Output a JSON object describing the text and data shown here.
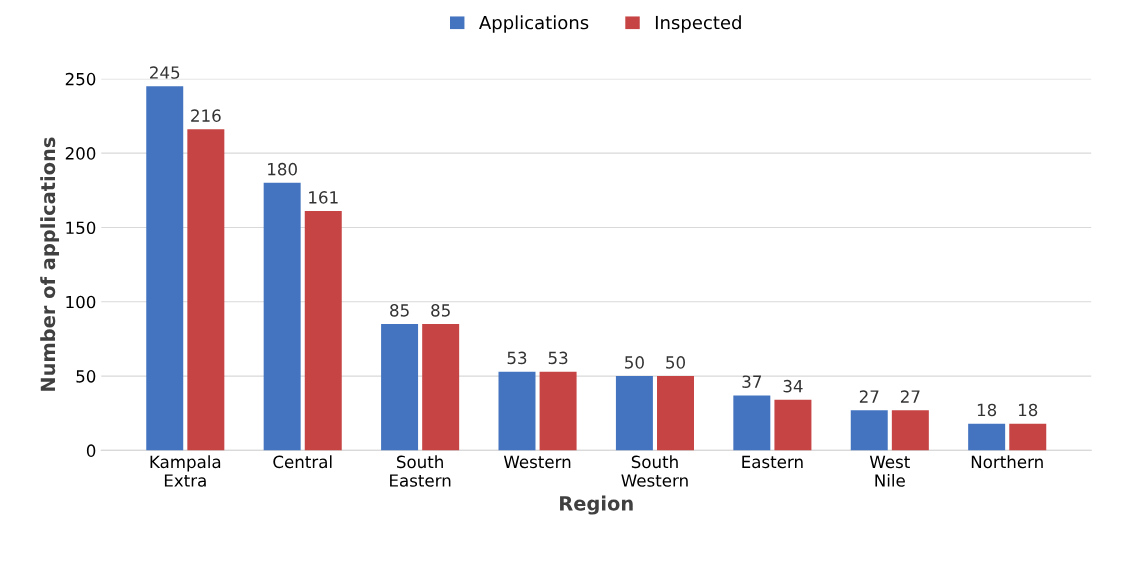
{
  "chart_data": {
    "type": "bar",
    "xlabel": "Region",
    "ylabel": "Number of applications",
    "categories": [
      "Kampala\nExtra",
      "Central",
      "South\nEastern",
      "Western",
      "South\nWestern",
      "Eastern",
      "West\nNile",
      "Northern"
    ],
    "series": [
      {
        "name": "Applications",
        "color": "#4474c0",
        "values": [
          245,
          180,
          85,
          53,
          50,
          37,
          27,
          18
        ]
      },
      {
        "name": "Inspected",
        "color": "#c64444",
        "values": [
          216,
          161,
          85,
          53,
          50,
          34,
          27,
          18
        ]
      }
    ],
    "ylim": [
      0,
      250
    ],
    "yticks": [
      0,
      50,
      100,
      150,
      200,
      250
    ],
    "grid": "y",
    "legend": "top",
    "data_labels": true
  }
}
